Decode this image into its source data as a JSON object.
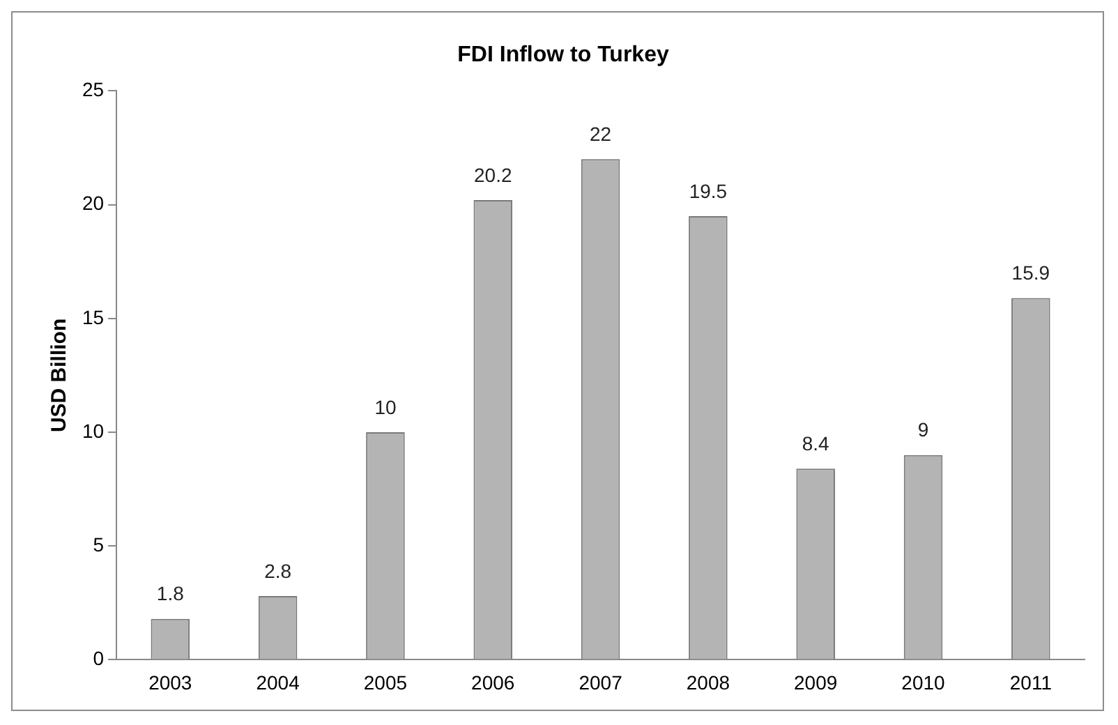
{
  "chart_data": {
    "type": "bar",
    "title": "FDI Inflow to Turkey",
    "ylabel": "USD Billion",
    "categories": [
      "2003",
      "2004",
      "2005",
      "2006",
      "2007",
      "2008",
      "2009",
      "2010",
      "2011"
    ],
    "values": [
      1.8,
      2.8,
      10,
      20.2,
      22,
      19.5,
      8.4,
      9,
      15.9
    ],
    "color": "#b4b4b4",
    "ylim": [
      0,
      25
    ],
    "yticks": [
      0,
      5,
      10,
      15,
      20,
      25
    ],
    "data_labels": true
  }
}
